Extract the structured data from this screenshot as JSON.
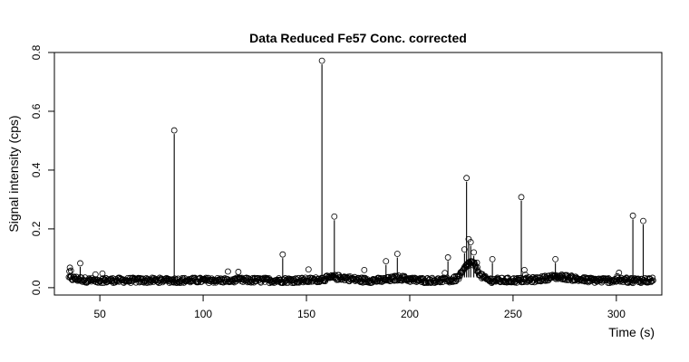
{
  "chart_data": {
    "type": "scatter",
    "title": "Data Reduced Fe57 Conc. corrected",
    "xlabel": "Time (s)",
    "ylabel": "Signal intensity (cps)",
    "xlim": [
      28,
      322
    ],
    "ylim": [
      -0.025,
      0.8
    ],
    "xticks": [
      50,
      100,
      150,
      200,
      250,
      300
    ],
    "yticks": [
      0.0,
      0.2,
      0.4,
      0.6,
      0.8
    ],
    "ytick_labels": [
      "0.0",
      "0.2",
      "0.4",
      "0.6",
      "0.8"
    ],
    "x_range": [
      35,
      318
    ],
    "baseline": 0.025,
    "grid": false,
    "legend": "none",
    "marker": "open-circle",
    "peaks": [
      {
        "x": 35.5,
        "y": 0.068
      },
      {
        "x": 36.0,
        "y": 0.058
      },
      {
        "x": 40.5,
        "y": 0.083
      },
      {
        "x": 86.0,
        "y": 0.535
      },
      {
        "x": 138.5,
        "y": 0.113
      },
      {
        "x": 151.0,
        "y": 0.062
      },
      {
        "x": 157.5,
        "y": 0.772
      },
      {
        "x": 163.5,
        "y": 0.242
      },
      {
        "x": 178.0,
        "y": 0.06
      },
      {
        "x": 188.5,
        "y": 0.09
      },
      {
        "x": 194.0,
        "y": 0.115
      },
      {
        "x": 218.5,
        "y": 0.103
      },
      {
        "x": 226.5,
        "y": 0.13
      },
      {
        "x": 227.5,
        "y": 0.373
      },
      {
        "x": 228.5,
        "y": 0.165
      },
      {
        "x": 229.5,
        "y": 0.155
      },
      {
        "x": 231.0,
        "y": 0.12
      },
      {
        "x": 232.5,
        "y": 0.085
      },
      {
        "x": 240.0,
        "y": 0.097
      },
      {
        "x": 254.0,
        "y": 0.308
      },
      {
        "x": 255.5,
        "y": 0.06
      },
      {
        "x": 270.5,
        "y": 0.097
      },
      {
        "x": 308.0,
        "y": 0.245
      },
      {
        "x": 313.0,
        "y": 0.227
      }
    ],
    "humps": [
      {
        "x": 229.5,
        "width": 4.5,
        "height": 0.06
      },
      {
        "x": 272.0,
        "width": 9.0,
        "height": 0.012
      },
      {
        "x": 165.0,
        "width": 8.0,
        "height": 0.01
      },
      {
        "x": 195.0,
        "width": 5.0,
        "height": 0.008
      }
    ]
  }
}
